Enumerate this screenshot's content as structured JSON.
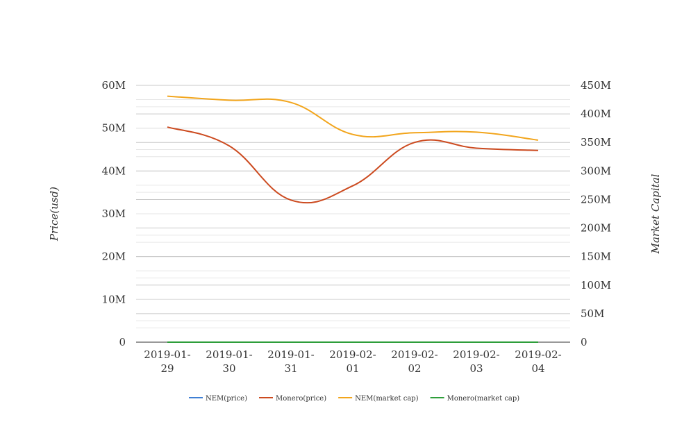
{
  "chart_data": {
    "type": "line",
    "categories": [
      "2019-01-29",
      "2019-01-30",
      "2019-01-31",
      "2019-02-01",
      "2019-02-02",
      "2019-02-03",
      "2019-02-04"
    ],
    "x_tick_labels": [
      [
        "2019-01-",
        "29"
      ],
      [
        "2019-01-",
        "30"
      ],
      [
        "2019-01-",
        "31"
      ],
      [
        "2019-02-",
        "01"
      ],
      [
        "2019-02-",
        "02"
      ],
      [
        "2019-02-",
        "03"
      ],
      [
        "2019-02-",
        "04"
      ]
    ],
    "ylabel": "Price(usd)",
    "y2label": "Market Capital",
    "ylim": [
      0,
      60000000
    ],
    "y2lim": [
      0,
      450000000
    ],
    "y_ticks": [
      0,
      10000000,
      20000000,
      30000000,
      40000000,
      50000000,
      60000000
    ],
    "y_tick_labels": [
      "0",
      "10M",
      "20M",
      "30M",
      "40M",
      "50M",
      "60M"
    ],
    "y2_ticks": [
      0,
      50000000,
      100000000,
      150000000,
      200000000,
      250000000,
      300000000,
      350000000,
      400000000,
      450000000
    ],
    "y2_tick_labels": [
      "0",
      "50M",
      "100M",
      "150M",
      "200M",
      "250M",
      "300M",
      "350M",
      "400M",
      "450M"
    ],
    "grid": true,
    "legend_position": "bottom",
    "series": [
      {
        "name": "NEM(price)",
        "axis": "left",
        "color": "#3f7fd4",
        "values": [
          0.06,
          0.06,
          0.06,
          0.06,
          0.06,
          0.06,
          0.06
        ]
      },
      {
        "name": "Monero(price)",
        "axis": "right",
        "color": "#cc4a1f",
        "values": [
          377000000,
          344000000,
          249000000,
          274000000,
          350000000,
          340000000,
          336000000
        ]
      },
      {
        "name": "NEM(market cap)",
        "axis": "right",
        "color": "#f2a51c",
        "values": [
          431000000,
          424000000,
          420000000,
          364000000,
          367000000,
          368000000,
          354000000
        ]
      },
      {
        "name": "Monero(market cap)",
        "axis": "left",
        "color": "#2e9e3a",
        "values": [
          0,
          0,
          0,
          0,
          0,
          0,
          0
        ]
      }
    ]
  }
}
